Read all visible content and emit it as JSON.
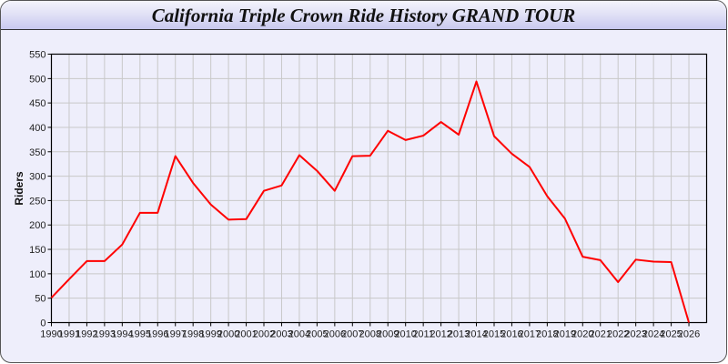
{
  "header": {
    "title": "California Triple Crown Ride History GRAND TOUR"
  },
  "chart_data": {
    "type": "line",
    "title": "California Triple Crown Ride History GRAND TOUR",
    "xlabel": "",
    "ylabel": "Riders",
    "x": [
      1990,
      1991,
      1992,
      1993,
      1994,
      1995,
      1996,
      1997,
      1998,
      1999,
      2000,
      2001,
      2002,
      2003,
      2004,
      2005,
      2006,
      2007,
      2008,
      2009,
      2010,
      2011,
      2012,
      2013,
      2014,
      2015,
      2016,
      2017,
      2018,
      2019,
      2020,
      2021,
      2022,
      2023,
      2024,
      2025,
      2026
    ],
    "series": [
      {
        "color": "#ff0000",
        "values": [
          51,
          89,
          126,
          126,
          160,
          225,
          225,
          341,
          286,
          242,
          211,
          212,
          270,
          281,
          343,
          311,
          270,
          341,
          342,
          393,
          374,
          383,
          411,
          385,
          494,
          382,
          346,
          319,
          259,
          213,
          135,
          128,
          83,
          129,
          125,
          124,
          0
        ]
      }
    ],
    "xlim": [
      1990,
      2027
    ],
    "ylim": [
      0,
      550
    ],
    "yticks": [
      0,
      50,
      100,
      150,
      200,
      250,
      300,
      350,
      400,
      450,
      500,
      550
    ],
    "grid": true,
    "legend": "none"
  }
}
